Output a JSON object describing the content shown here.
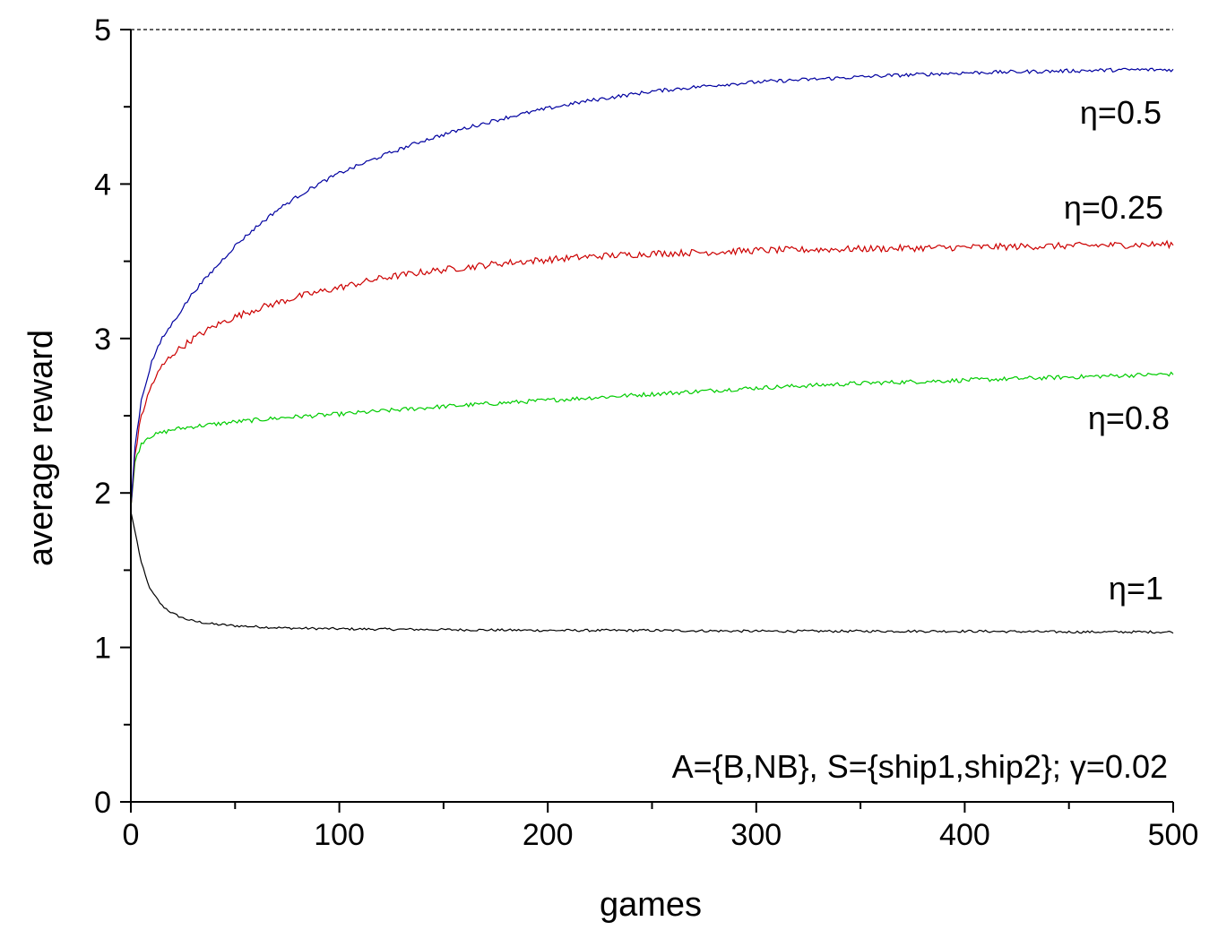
{
  "chart_data": {
    "type": "line",
    "xlabel": "games",
    "ylabel": "average reward",
    "xlim": [
      0,
      500
    ],
    "ylim": [
      0,
      5
    ],
    "x_ticks": [
      "0",
      "100",
      "200",
      "300",
      "400",
      "500"
    ],
    "y_ticks": [
      "0",
      "1",
      "2",
      "3",
      "4",
      "5"
    ],
    "grid": false,
    "reference_line": {
      "y": 5,
      "style": "dashed",
      "color": "#000000"
    },
    "annotation": "A={B,NB}, S={ship1,ship2}; γ=0.02",
    "series": [
      {
        "name": "η=0.5",
        "color": "#0000a0",
        "x": [
          0,
          2,
          5,
          10,
          15,
          20,
          30,
          40,
          50,
          60,
          70,
          80,
          90,
          100,
          120,
          140,
          160,
          180,
          200,
          220,
          250,
          280,
          300,
          330,
          360,
          400,
          440,
          480,
          500
        ],
        "y": [
          1.9,
          2.3,
          2.6,
          2.85,
          3.0,
          3.1,
          3.3,
          3.45,
          3.6,
          3.72,
          3.83,
          3.92,
          4.0,
          4.07,
          4.18,
          4.28,
          4.36,
          4.43,
          4.49,
          4.54,
          4.6,
          4.64,
          4.66,
          4.68,
          4.7,
          4.72,
          4.73,
          4.74,
          4.74
        ]
      },
      {
        "name": "η=0.25",
        "color": "#cc0000",
        "x": [
          0,
          2,
          5,
          10,
          15,
          20,
          30,
          40,
          50,
          60,
          70,
          80,
          90,
          100,
          120,
          140,
          160,
          180,
          200,
          220,
          250,
          280,
          300,
          350,
          400,
          450,
          500
        ],
        "y": [
          1.9,
          2.25,
          2.5,
          2.7,
          2.82,
          2.9,
          3.0,
          3.08,
          3.14,
          3.19,
          3.23,
          3.27,
          3.3,
          3.33,
          3.39,
          3.43,
          3.46,
          3.49,
          3.51,
          3.53,
          3.55,
          3.56,
          3.57,
          3.58,
          3.59,
          3.6,
          3.61
        ]
      },
      {
        "name": "η=0.8",
        "color": "#00cc00",
        "x": [
          0,
          2,
          5,
          8,
          10,
          15,
          20,
          30,
          50,
          75,
          100,
          150,
          200,
          250,
          300,
          350,
          400,
          450,
          500
        ],
        "y": [
          1.9,
          2.2,
          2.32,
          2.36,
          2.37,
          2.39,
          2.41,
          2.43,
          2.46,
          2.49,
          2.51,
          2.56,
          2.6,
          2.64,
          2.68,
          2.71,
          2.73,
          2.75,
          2.77
        ]
      },
      {
        "name": "η=1",
        "color": "#000000",
        "x": [
          0,
          2,
          5,
          8,
          10,
          15,
          20,
          25,
          30,
          40,
          50,
          75,
          100,
          150,
          200,
          250,
          300,
          350,
          400,
          450,
          500
        ],
        "y": [
          1.88,
          1.75,
          1.55,
          1.42,
          1.36,
          1.27,
          1.22,
          1.19,
          1.17,
          1.15,
          1.14,
          1.125,
          1.12,
          1.115,
          1.11,
          1.11,
          1.105,
          1.105,
          1.105,
          1.1,
          1.1
        ]
      }
    ]
  }
}
